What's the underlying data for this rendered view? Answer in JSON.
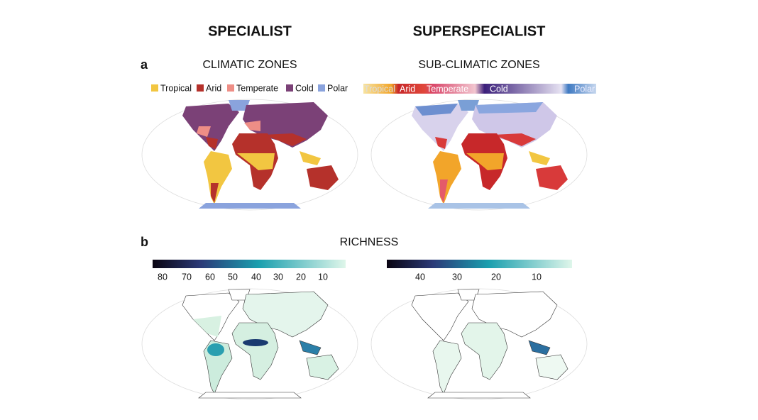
{
  "headers": {
    "left": "SPECIALIST",
    "right": "SUPERSPECIALIST"
  },
  "panel_a": {
    "label": "a",
    "left_title": "CLIMATIC ZONES",
    "right_title": "SUB-CLIMATIC ZONES",
    "legend": [
      "Tropical",
      "Arid",
      "Temperate",
      "Cold",
      "Polar"
    ],
    "sub_legend": [
      "Tropical",
      "Arid",
      "Temperate",
      "Cold",
      "Polar"
    ]
  },
  "panel_b": {
    "label": "b",
    "title": "RICHNESS",
    "left_colorbar_ticks": [
      80,
      70,
      60,
      50,
      40,
      30,
      20,
      10
    ],
    "right_colorbar_ticks": [
      40,
      30,
      20,
      10
    ]
  }
}
